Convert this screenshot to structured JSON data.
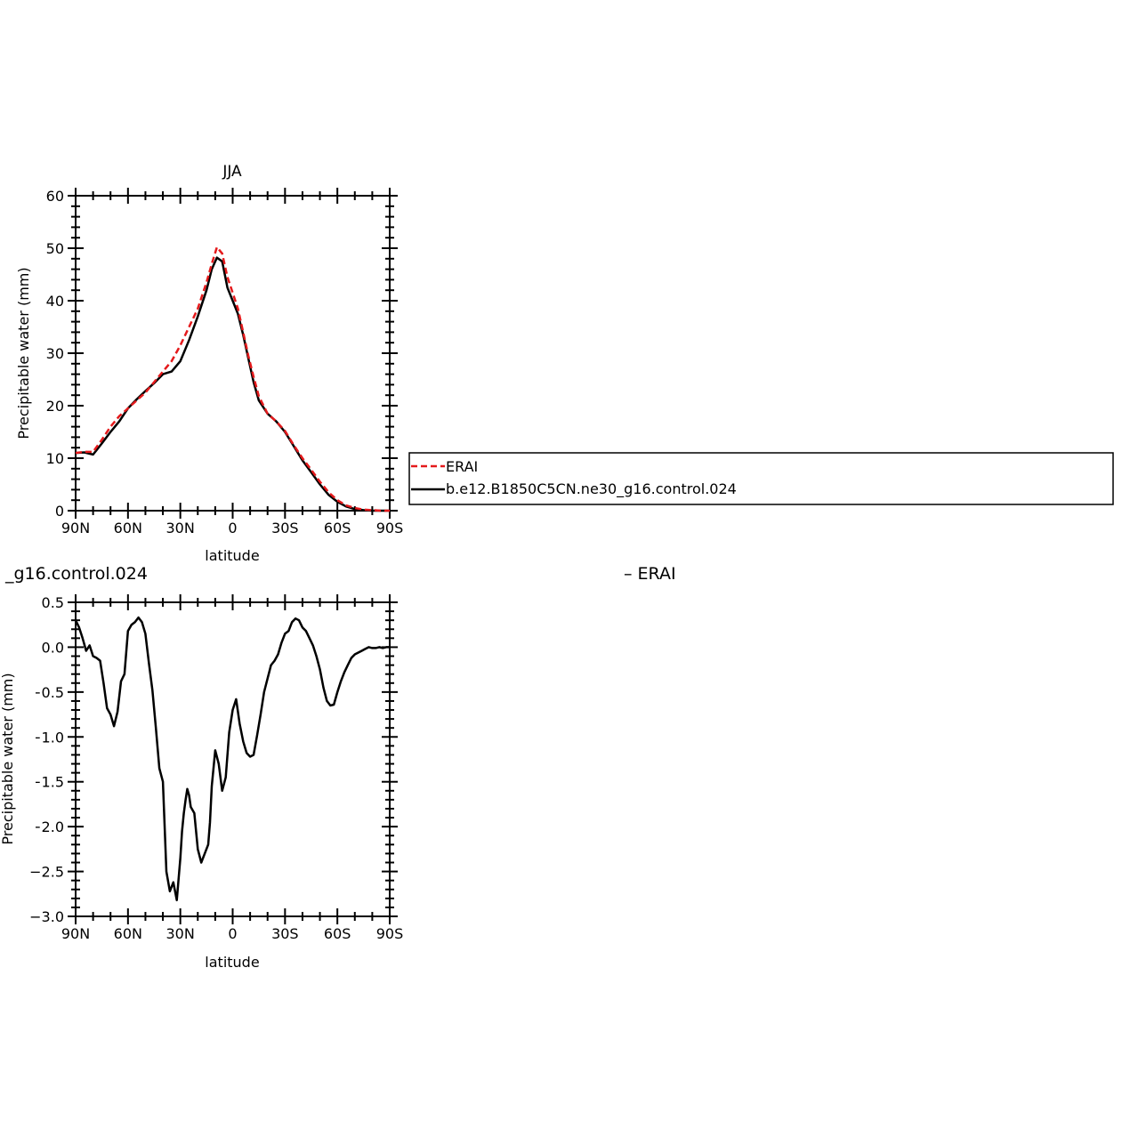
{
  "chart_data": [
    {
      "type": "line",
      "title": "JJA",
      "xlabel": "latitude",
      "ylabel": "Precipitable water (mm)",
      "xlim": [
        90,
        -90
      ],
      "ylim": [
        0,
        60
      ],
      "x_ticks": [
        90,
        60,
        30,
        0,
        -30,
        -60,
        -90
      ],
      "x_tick_labels": [
        "90N",
        "60N",
        "30N",
        "0",
        "30S",
        "60S",
        "90S"
      ],
      "y_ticks": [
        0,
        10,
        20,
        30,
        40,
        50,
        60
      ],
      "y_tick_labels": [
        "0",
        "10",
        "20",
        "30",
        "40",
        "50",
        "60"
      ],
      "grid": false,
      "legend_position": "right",
      "colors": {
        "ERAI": "#e41a1c",
        "model": "#000000"
      },
      "series": [
        {
          "name": "ERAI",
          "style": "dashed",
          "x": [
            90,
            85,
            80,
            75,
            70,
            65,
            60,
            55,
            50,
            45,
            40,
            35,
            30,
            25,
            20,
            15,
            12,
            9,
            6,
            3,
            0,
            -3,
            -6,
            -9,
            -12,
            -15,
            -20,
            -25,
            -30,
            -35,
            -40,
            -45,
            -50,
            -55,
            -60,
            -65,
            -70,
            -75,
            -80,
            -85,
            -90
          ],
          "y": [
            11.0,
            11.2,
            11.2,
            13.5,
            16.0,
            18.0,
            19.5,
            21.0,
            22.5,
            24.5,
            26.5,
            28.5,
            31.5,
            35.0,
            38.5,
            43.5,
            47.0,
            50.2,
            49.0,
            44.5,
            41.5,
            38.5,
            34.0,
            29.5,
            25.5,
            21.8,
            18.5,
            17.0,
            15.2,
            12.5,
            10.0,
            7.8,
            5.5,
            3.5,
            2.0,
            1.0,
            0.5,
            0.2,
            0.1,
            0.0,
            0.0
          ]
        },
        {
          "name": "b.e12.B1850C5CN.ne30_g16.control.024",
          "style": "solid",
          "x": [
            90,
            85,
            80,
            75,
            70,
            65,
            60,
            55,
            50,
            45,
            40,
            35,
            30,
            25,
            20,
            15,
            12,
            9,
            6,
            3,
            0,
            -3,
            -6,
            -9,
            -12,
            -15,
            -20,
            -25,
            -30,
            -35,
            -40,
            -45,
            -50,
            -55,
            -60,
            -65,
            -70,
            -75,
            -80,
            -85,
            -90
          ],
          "y": [
            11.0,
            11.1,
            10.7,
            12.8,
            15.0,
            17.0,
            19.5,
            21.2,
            22.8,
            24.3,
            26.0,
            26.5,
            28.5,
            32.5,
            37.0,
            42.0,
            46.0,
            48.2,
            47.5,
            42.5,
            40.0,
            37.5,
            33.5,
            29.0,
            24.5,
            21.0,
            18.5,
            17.0,
            15.0,
            12.3,
            9.6,
            7.3,
            5.0,
            3.0,
            1.7,
            0.8,
            0.3,
            0.1,
            0.0,
            0.0,
            0.0
          ]
        }
      ]
    },
    {
      "type": "line",
      "title": "_g16.control.024",
      "title_right": "– ERAI",
      "xlabel": "latitude",
      "ylabel": "Precipitable water (mm)",
      "xlim": [
        90,
        -90
      ],
      "ylim": [
        -3.0,
        0.5
      ],
      "x_ticks": [
        90,
        60,
        30,
        0,
        -30,
        -60,
        -90
      ],
      "x_tick_labels": [
        "90N",
        "60N",
        "30N",
        "0",
        "30S",
        "60S",
        "90S"
      ],
      "y_ticks": [
        0.5,
        0.0,
        -0.5,
        -1.0,
        -1.5,
        -2.0,
        -2.5,
        -3.0
      ],
      "y_tick_labels": [
        "0.5",
        "0.0",
        "−0.5",
        "−1.0",
        "−1.5",
        "−2.0",
        "−2.5",
        "−3.0"
      ],
      "grid": false,
      "series": [
        {
          "style": "solid",
          "x": [
            90,
            88,
            86,
            84,
            82,
            80,
            78,
            76,
            74,
            72,
            70,
            68,
            66,
            64,
            62,
            60,
            58,
            56,
            54,
            52,
            50,
            48,
            46,
            44,
            42,
            40,
            38,
            36,
            34,
            32,
            30,
            29,
            28,
            27,
            26,
            25,
            24,
            22,
            20,
            18,
            16,
            14,
            13,
            12,
            10,
            8,
            6,
            4,
            2,
            0,
            -2,
            -4,
            -6,
            -8,
            -10,
            -12,
            -14,
            -16,
            -18,
            -20,
            -22,
            -24,
            -26,
            -28,
            -30,
            -32,
            -34,
            -36,
            -38,
            -40,
            -42,
            -44,
            -46,
            -48,
            -50,
            -52,
            -54,
            -56,
            -58,
            -60,
            -62,
            -64,
            -66,
            -68,
            -70,
            -72,
            -74,
            -76,
            -78,
            -80,
            -82,
            -84,
            -86,
            -88,
            -90
          ],
          "y": [
            0.3,
            0.22,
            0.1,
            -0.04,
            0.02,
            -0.1,
            -0.12,
            -0.15,
            -0.4,
            -0.68,
            -0.75,
            -0.88,
            -0.72,
            -0.38,
            -0.3,
            0.18,
            0.25,
            0.28,
            0.33,
            0.28,
            0.15,
            -0.18,
            -0.48,
            -0.9,
            -1.35,
            -1.5,
            -2.5,
            -2.72,
            -2.62,
            -2.82,
            -2.35,
            -2.05,
            -1.85,
            -1.7,
            -1.58,
            -1.65,
            -1.78,
            -1.85,
            -2.25,
            -2.4,
            -2.3,
            -2.2,
            -1.95,
            -1.55,
            -1.15,
            -1.3,
            -1.6,
            -1.45,
            -0.95,
            -0.7,
            -0.58,
            -0.85,
            -1.05,
            -1.18,
            -1.22,
            -1.2,
            -0.98,
            -0.75,
            -0.5,
            -0.35,
            -0.2,
            -0.15,
            -0.08,
            0.05,
            0.15,
            0.18,
            0.28,
            0.32,
            0.3,
            0.22,
            0.18,
            0.1,
            0.02,
            -0.1,
            -0.25,
            -0.45,
            -0.6,
            -0.65,
            -0.64,
            -0.5,
            -0.38,
            -0.28,
            -0.2,
            -0.12,
            -0.08,
            -0.06,
            -0.04,
            -0.02,
            0.0,
            -0.01,
            -0.01,
            0.0,
            -0.01,
            0.0,
            0.0
          ]
        }
      ]
    }
  ]
}
